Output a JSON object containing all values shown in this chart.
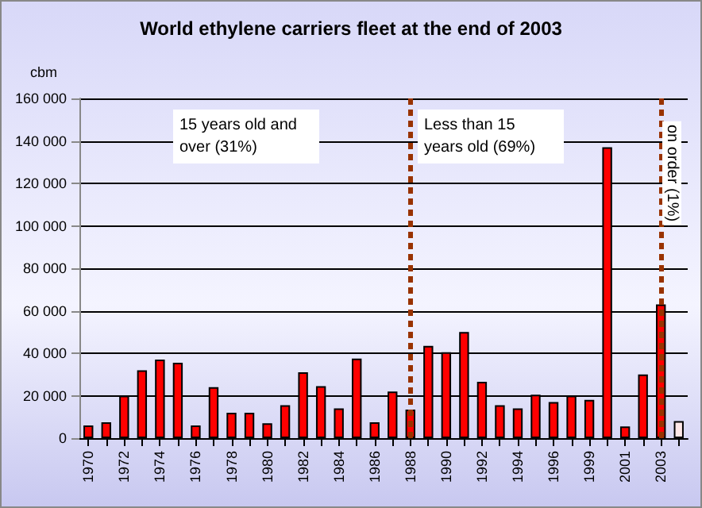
{
  "chart_data": {
    "type": "bar",
    "title": "World ethylene carriers fleet at the end of 2003",
    "ylabel": "cbm",
    "categories": [
      "1970",
      null,
      "1972",
      null,
      "1974",
      null,
      "1976",
      null,
      "1978",
      null,
      "1980",
      null,
      "1982",
      null,
      "1984",
      null,
      "1986",
      null,
      "1988",
      null,
      "1990",
      null,
      "1992",
      null,
      "1994",
      null,
      "1996",
      null,
      "1999",
      null,
      "2001",
      null,
      "2003",
      null
    ],
    "values": [
      6000,
      7500,
      20000,
      32000,
      37000,
      35500,
      6000,
      24000,
      12000,
      12000,
      7000,
      15500,
      31000,
      24500,
      14000,
      37500,
      7500,
      22000,
      13500,
      43500,
      40500,
      50000,
      26500,
      15500,
      14000,
      20500,
      17000,
      20000,
      18000,
      137000,
      5500,
      30000,
      63000,
      8000
    ],
    "colors": [
      "#ff0000",
      "#ff0000",
      "#ff0000",
      "#ff0000",
      "#ff0000",
      "#ff0000",
      "#ff0000",
      "#ff0000",
      "#ff0000",
      "#ff0000",
      "#ff0000",
      "#ff0000",
      "#ff0000",
      "#ff0000",
      "#ff0000",
      "#ff0000",
      "#ff0000",
      "#ff0000",
      "#ff0000",
      "#ff0000",
      "#ff0000",
      "#ff0000",
      "#ff0000",
      "#ff0000",
      "#ff0000",
      "#ff0000",
      "#ff0000",
      "#ff0000",
      "#ff0000",
      "#ff0000",
      "#ff0000",
      "#ff0000",
      "#ff0000",
      "#ffe8e8"
    ],
    "ylim": [
      0,
      160000
    ],
    "yticks": [
      {
        "value": 0,
        "label": "0"
      },
      {
        "value": 20000,
        "label": "20 000"
      },
      {
        "value": 40000,
        "label": "40 000"
      },
      {
        "value": 60000,
        "label": "60 000"
      },
      {
        "value": 80000,
        "label": "80 000"
      },
      {
        "value": 100000,
        "label": "100 000"
      },
      {
        "value": 120000,
        "label": "120 000"
      },
      {
        "value": 140000,
        "label": "140 000"
      },
      {
        "value": 160000,
        "label": "160 000"
      }
    ],
    "ref_lines": [
      {
        "axis": "x",
        "value": "1988",
        "color": "#993300",
        "line_style": "dotted"
      },
      {
        "axis": "x",
        "value": "2003",
        "color": "#993300",
        "line_style": "dotted"
      }
    ],
    "annotations": [
      "15 years old and over (31%)",
      "Less than 15 years old (69%)",
      "on order (1%)"
    ],
    "grid": "y"
  }
}
